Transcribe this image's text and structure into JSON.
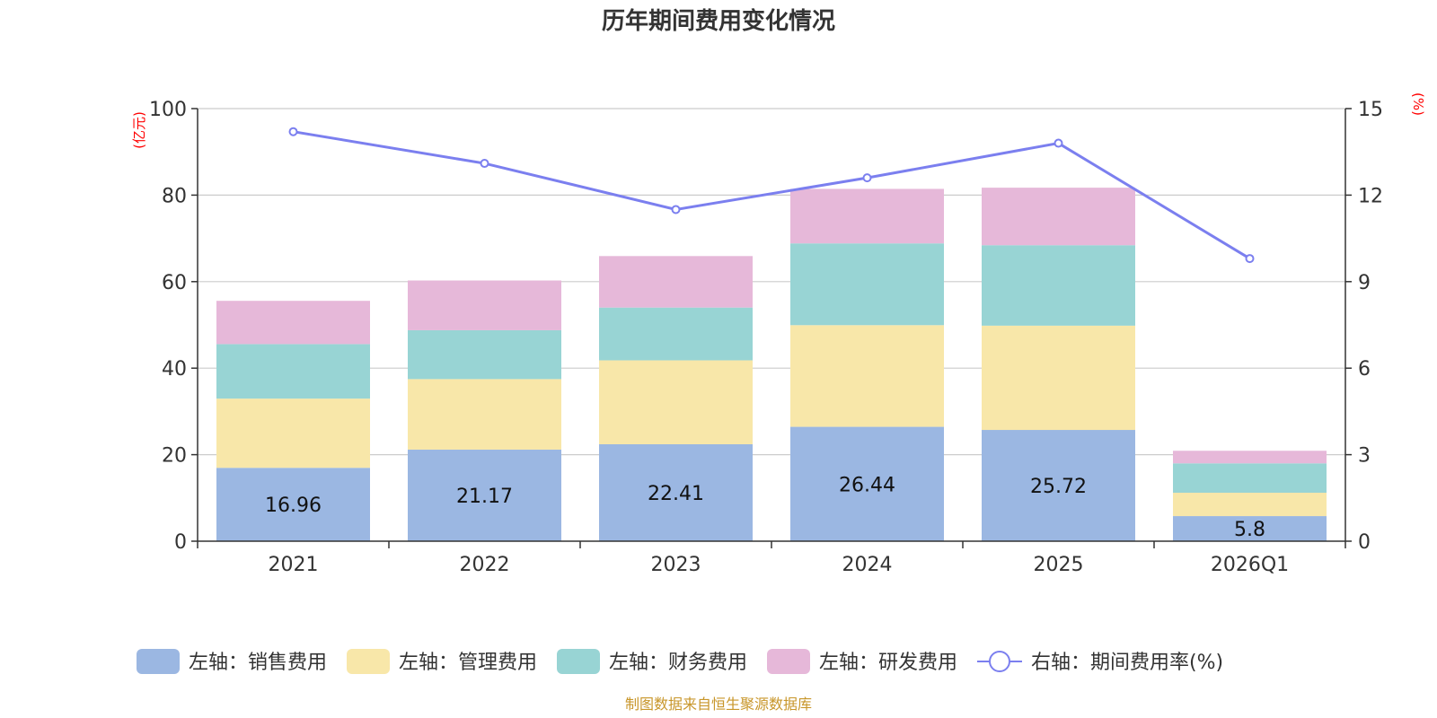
{
  "chart_data": {
    "type": "bar",
    "stacked": true,
    "title": "历年期间费用变化情况",
    "categories": [
      "2021",
      "2022",
      "2023",
      "2024",
      "2025",
      "2026Q1"
    ],
    "left_axis": {
      "unit": "(亿元)",
      "ylim": [
        0,
        100
      ],
      "ticks": [
        "0",
        "20",
        "40",
        "60",
        "80",
        "100"
      ]
    },
    "right_axis": {
      "unit": "(%)",
      "ylim": [
        0,
        15
      ],
      "ticks": [
        "0",
        "3",
        "6",
        "9",
        "12",
        "15"
      ]
    },
    "series": [
      {
        "name": "左轴：销售费用",
        "axis": "left",
        "color": "#9bb7e2",
        "values": [
          16.96,
          21.17,
          22.41,
          26.44,
          25.72,
          5.8
        ],
        "labels": [
          "16.96",
          "21.17",
          "22.41",
          "26.44",
          "25.72",
          "5.8"
        ]
      },
      {
        "name": "左轴：管理费用",
        "axis": "left",
        "color": "#f8e7a9",
        "values": [
          16.0,
          16.3,
          19.4,
          23.5,
          24.1,
          5.4
        ]
      },
      {
        "name": "左轴：财务费用",
        "axis": "left",
        "color": "#98d4d4",
        "values": [
          12.6,
          11.3,
          12.2,
          18.9,
          18.6,
          6.8
        ]
      },
      {
        "name": "左轴：研发费用",
        "axis": "left",
        "color": "#e6b8d9",
        "values": [
          10.0,
          11.5,
          11.9,
          12.6,
          13.3,
          2.9
        ]
      }
    ],
    "line_series": {
      "name": "右轴：期间费用率(%)",
      "axis": "right",
      "color": "#7b7fef",
      "values": [
        14.2,
        13.1,
        11.5,
        12.6,
        13.8,
        9.8
      ]
    },
    "grid": true,
    "legend_position": "bottom"
  },
  "source_note": "制图数据来自恒生聚源数据库",
  "colors": {
    "title": "#333333",
    "unit": "#ff0000",
    "source": "#c8962a",
    "grid": "#cccccc",
    "axis": "#333333"
  }
}
